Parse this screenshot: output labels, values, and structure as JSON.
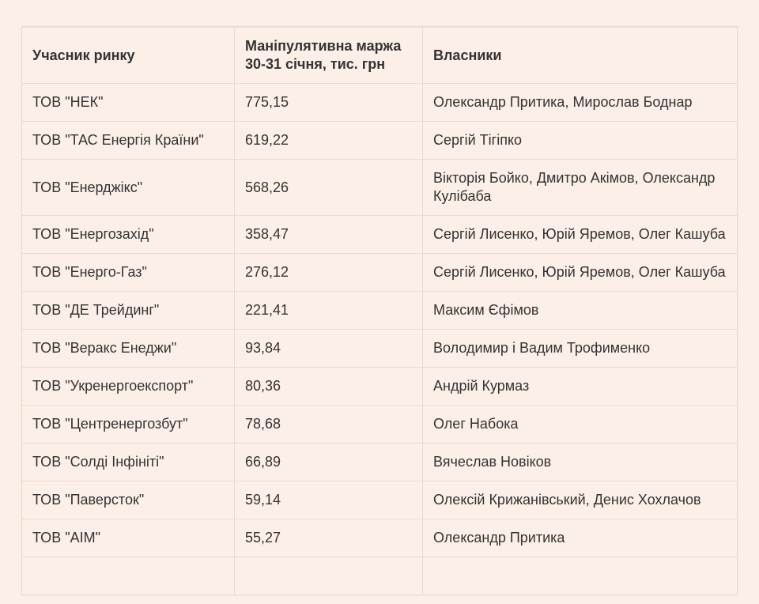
{
  "table": {
    "header": [
      "Учасник ринку",
      "Маніпулятивна маржа 30-31 січня, тис. грн",
      "Власники"
    ],
    "rows": [
      [
        "ТОВ \"НЕК\"",
        "775,15",
        "Олександр Притика, Мирослав Боднар"
      ],
      [
        "ТОВ \"ТАС Енергія Країни\"",
        "619,22",
        "Сергій Тігіпко"
      ],
      [
        "ТОВ \"Енерджікс\"",
        "568,26",
        "Вікторія Бойко, Дмитро Акімов, Олександр Кулібаба"
      ],
      [
        "ТОВ \"Енергозахід\"",
        "358,47",
        "Сергій Лисенко, Юрій Яремов, Олег Кашуба"
      ],
      [
        "ТОВ \"Енерго-Газ\"",
        "276,12",
        "Сергій Лисенко, Юрій Яремов, Олег Кашуба"
      ],
      [
        "ТОВ \"ДЕ Трейдинг\"",
        "221,41",
        "Максим Єфімов"
      ],
      [
        "ТОВ \"Веракс Енеджи\"",
        "93,84",
        "Володимир і Вадим Трофименко"
      ],
      [
        "ТОВ \"Укренергоекспорт\"",
        "80,36",
        "Андрій Курмаз"
      ],
      [
        "ТОВ \"Центренергозбут\"",
        "78,68",
        "Олег Набока"
      ],
      [
        "ТОВ \"Солді Інфініті\"",
        "66,89",
        "Вячеслав Новіков"
      ],
      [
        "ТОВ \"Паверсток\"",
        "59,14",
        "Олексій Крижанівський, Денис Хохлачов"
      ],
      [
        "ТОВ \"АІМ\"",
        "55,27",
        "Олександр Притика"
      ]
    ]
  }
}
